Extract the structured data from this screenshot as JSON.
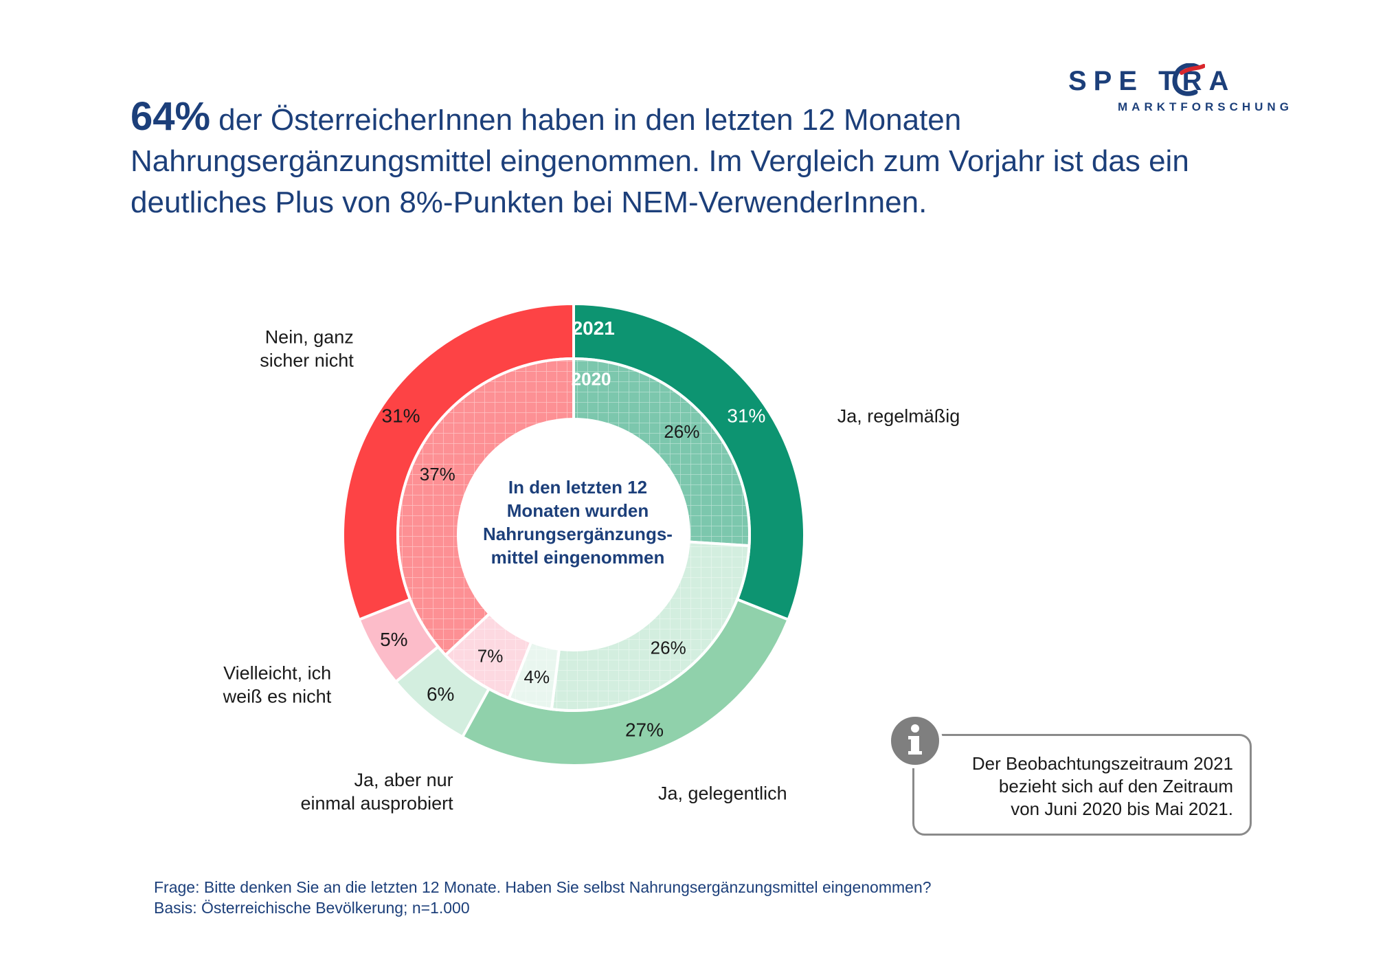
{
  "logo": {
    "word": "SPE TRA",
    "sub": "MARKTFORSCHUNG"
  },
  "headline": {
    "highlight": "64%",
    "text": "der ÖsterreicherInnen haben in den letzten 12 Monaten Nahrungsergänzungsmittel eingenommen. Im Vergleich zum Vorjahr ist das ein deutliches Plus von 8%-Punkten bei NEM-VerwenderInnen."
  },
  "chart_data": {
    "type": "pie",
    "subtype": "nested-donut",
    "center_label": [
      "In den letzten 12",
      "Monaten wurden",
      "Nahrungsergänzungs-",
      "mittel eingenommen"
    ],
    "categories": [
      "Ja, regelmäßig",
      "Ja, gelegentlich",
      "Ja, aber nur einmal ausprobiert",
      "Vielleicht, ich weiß es nicht",
      "Nein, ganz sicher nicht"
    ],
    "category_labels": [
      [
        "Ja, regelmäßig"
      ],
      [
        "Ja, gelegentlich"
      ],
      [
        "Ja, aber nur",
        "einmal ausprobiert"
      ],
      [
        "Vielleicht, ich",
        "weiß es nicht"
      ],
      [
        "Nein, ganz",
        "sicher nicht"
      ]
    ],
    "series": [
      {
        "name": "2021",
        "values": [
          31,
          27,
          6,
          5,
          31
        ],
        "value_labels": [
          "31%",
          "27%",
          "6%",
          "5%",
          "31%"
        ]
      },
      {
        "name": "2020",
        "values": [
          26,
          26,
          4,
          7,
          37
        ],
        "value_labels": [
          "26%",
          "26%",
          "4%",
          "7%",
          "37%"
        ]
      }
    ],
    "colors_outer": [
      "#0d9471",
      "#90d1ab",
      "#d3eedf",
      "#fcbcc9",
      "#fd4345"
    ],
    "colors_inner": [
      "#7cc7ad",
      "#d3eedf",
      "#e9f6ef",
      "#fdd9e1",
      "#fd9094"
    ]
  },
  "info": {
    "icon": "info-icon",
    "text_lines": [
      "Der Beobachtungszeitraum 2021",
      "bezieht sich auf den Zeitraum",
      "von Juni 2020 bis Mai 2021."
    ]
  },
  "footnote": {
    "question": "Frage: Bitte denken Sie an die letzten 12 Monate. Haben Sie selbst Nahrungsergänzungsmittel eingenommen?",
    "basis": "Basis: Österreichische Bevölkerung; n=1.000"
  }
}
